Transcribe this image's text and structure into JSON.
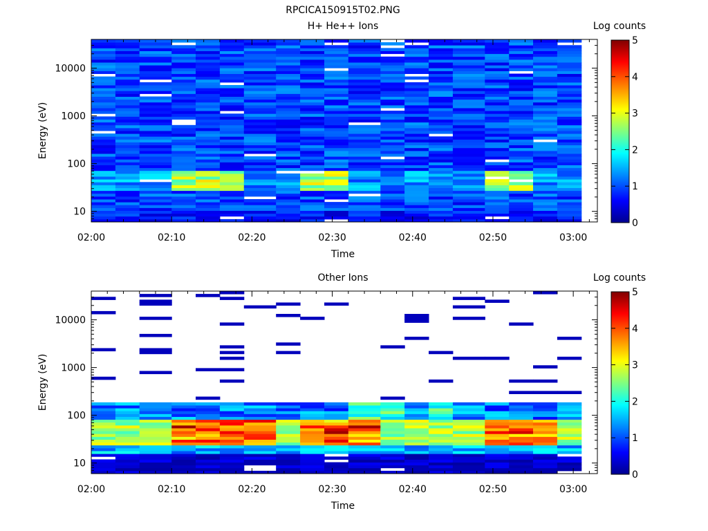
{
  "figure_title": "RPCICA150915T02.PNG",
  "colorbar": {
    "title": "Log counts",
    "min": 0,
    "max": 5,
    "ticks": [
      "0",
      "1",
      "2",
      "3",
      "4",
      "5"
    ],
    "stops": [
      "#00008f",
      "#0000ff",
      "#0080ff",
      "#00ffff",
      "#80ff80",
      "#ffff00",
      "#ff8000",
      "#ff0000",
      "#800000"
    ]
  },
  "chart_data": [
    {
      "type": "heatmap",
      "title": "H+ He++ Ions",
      "xlabel": "Time",
      "ylabel": "Energy (eV)",
      "yscale": "log",
      "ylim": [
        6,
        40000
      ],
      "xlim": [
        "02:00",
        "03:03"
      ],
      "x_ticks": [
        "02:00",
        "02:10",
        "02:20",
        "02:30",
        "02:40",
        "02:50",
        "03:00"
      ],
      "y_ticks": [
        "10",
        "100",
        "1000",
        "10000"
      ],
      "colorbar": "Log counts, 0–5",
      "time_bins": [
        "02:00",
        "02:03",
        "02:06",
        "02:10",
        "02:13",
        "02:16",
        "02:19",
        "02:23",
        "02:26",
        "02:29",
        "02:32",
        "02:36",
        "02:39",
        "02:42",
        "02:45",
        "02:49",
        "02:52",
        "02:55",
        "02:58"
      ],
      "dominant_feature": {
        "energy_eV": [
          30,
          70
        ],
        "log_counts_max": 3.2,
        "times": [
          "02:10",
          "02:13",
          "02:16",
          "02:26",
          "02:29",
          "02:49"
        ]
      }
    },
    {
      "type": "heatmap",
      "title": "Other Ions",
      "xlabel": "Time",
      "ylabel": "Energy (eV)",
      "yscale": "log",
      "ylim": [
        6,
        40000
      ],
      "xlim": [
        "02:00",
        "03:03"
      ],
      "x_ticks": [
        "02:00",
        "02:10",
        "02:20",
        "02:30",
        "02:40",
        "02:50",
        "03:00"
      ],
      "y_ticks": [
        "10",
        "100",
        "1000",
        "10000"
      ],
      "colorbar": "Log counts, 0–5",
      "time_bins": [
        "02:00",
        "02:03",
        "02:06",
        "02:10",
        "02:13",
        "02:16",
        "02:19",
        "02:23",
        "02:26",
        "02:29",
        "02:32",
        "02:36",
        "02:39",
        "02:42",
        "02:45",
        "02:49",
        "02:52",
        "02:55",
        "02:58"
      ],
      "dominant_feature": {
        "energy_eV": [
          25,
          80
        ],
        "log_counts_max": 4.5,
        "times": [
          "02:10",
          "02:13",
          "02:16",
          "02:26",
          "02:49",
          "02:52"
        ]
      }
    }
  ]
}
